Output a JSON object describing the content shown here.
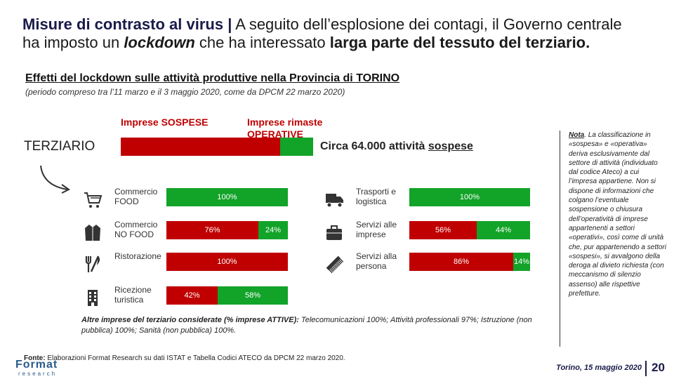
{
  "title": {
    "bold": "Misure di contrasto al virus |",
    "rest1": " A seguito dell’esplosione dei contagi, il Governo centrale ha imposto un ",
    "italic": "lockdown",
    "rest2": " che ha interessato ",
    "bold2": "larga parte del tessuto del terziario."
  },
  "subtitle": "Effetti del lockdown sulle attività produttive nella Provincia di TORINO",
  "period": "(periodo compreso tra l’11 marzo e il 3 maggio 2020, come da DPCM 22 marzo 2020)",
  "legend": {
    "suspended": "Imprese SOSPESE",
    "operative": "Imprese rimaste OPERATIVE"
  },
  "colors": {
    "suspended": "#c00000",
    "operative": "#12a329",
    "accent": "#1a1a4a"
  },
  "sector": "TERZIARIO",
  "summary": {
    "prefix": "Circa 64.000 attività ",
    "underlined": "sospese"
  },
  "chart_data": {
    "type": "bar",
    "stacked": true,
    "orientation": "horizontal",
    "unit": "%",
    "series_names": [
      "Imprese SOSPESE",
      "Imprese rimaste OPERATIVE"
    ],
    "overall": {
      "suspended": 83,
      "operative": 17
    },
    "items": [
      {
        "label": "Commercio FOOD",
        "icon": "shopping-cart-icon",
        "suspended": 0,
        "operative": 100,
        "labels": [
          "",
          "100%"
        ]
      },
      {
        "label": "Commercio NO FOOD",
        "icon": "jacket-icon",
        "suspended": 76,
        "operative": 24,
        "labels": [
          "76%",
          "24%"
        ]
      },
      {
        "label": "Ristorazione",
        "icon": "cutlery-icon",
        "suspended": 100,
        "operative": 0,
        "labels": [
          "100%",
          ""
        ]
      },
      {
        "label": "Ricezione turistica",
        "icon": "hotel-building-icon",
        "suspended": 42,
        "operative": 58,
        "labels": [
          "42%",
          "58%"
        ]
      },
      {
        "label": "Trasporti e logistica",
        "icon": "truck-icon",
        "suspended": 0,
        "operative": 100,
        "labels": [
          "",
          "100%"
        ]
      },
      {
        "label": "Servizi alle imprese",
        "icon": "briefcase-icon",
        "suspended": 56,
        "operative": 44,
        "labels": [
          "56%",
          "44%"
        ]
      },
      {
        "label": "Servizi alla persona",
        "icon": "comb-icon",
        "suspended": 86,
        "operative": 14,
        "labels": [
          "86%",
          "14%"
        ]
      }
    ]
  },
  "other": {
    "lead": "Altre imprese del terziario considerate (% imprese ATTIVE):",
    "text": " Telecomunicazioni 100%; Attività professionali 97%; Istruzione (non pubblica) 100%; Sanità (non pubblica) 100%."
  },
  "source": {
    "lead": "Fonte:",
    "text": " Elaborazioni Format Research su dati ISTAT e Tabella Codici ATECO da DPCM 22 marzo 2020."
  },
  "note": {
    "title": "Nota",
    "text": ". La classificazione in «sospesa» e «operativa» deriva esclusivamente dal settore di attività (individuato dal codice Ateco) a cui l’impresa appartiene. Non si dispone di informazioni che colgano l’eventuale sospensione o chiusura dell’operatività di imprese appartenenti a settori «operativi», così come di unità che, pur appartenendo a settori «sospesi», si avvalgono della deroga al divieto richiesta (con meccanismo di silenzio assenso) alle rispettive prefetture."
  },
  "footer": {
    "date": "Torino, 15 maggio 2020",
    "page": "20"
  },
  "logo": {
    "name": "Format",
    "sub": "research"
  }
}
